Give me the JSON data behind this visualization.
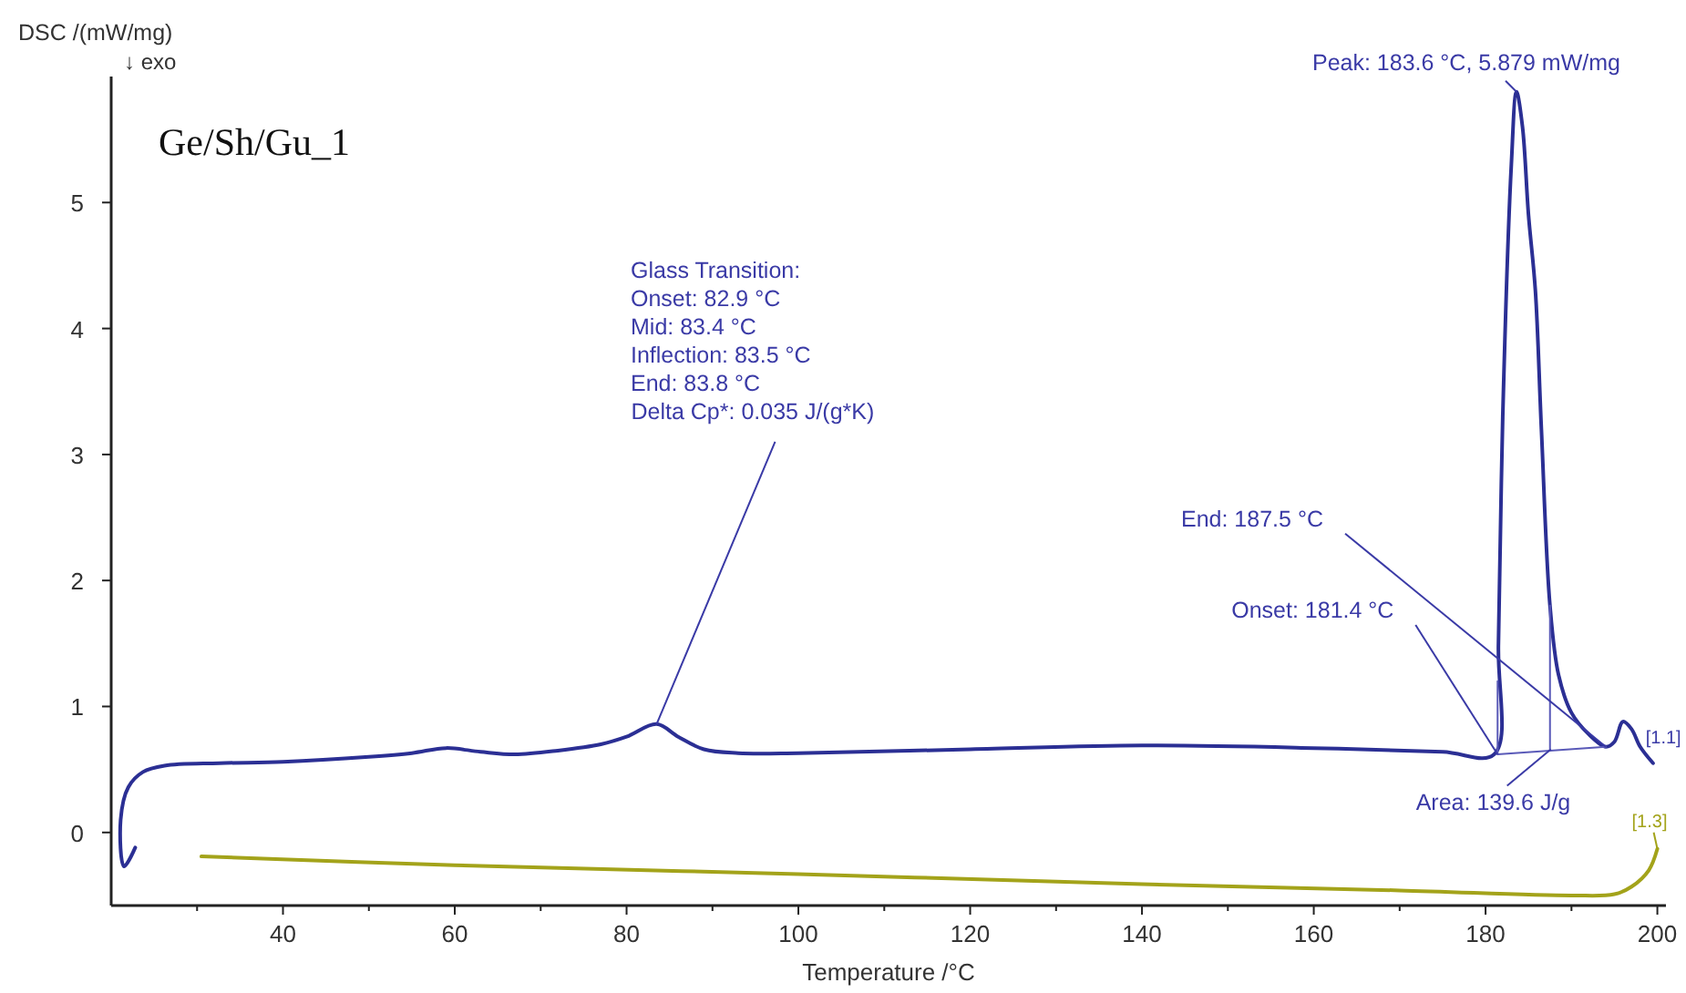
{
  "chart_data": {
    "type": "line",
    "title": "Ge/Sh/Gu_1",
    "xlabel": "Temperature /°C",
    "ylabel": "DSC /(mW/mg)",
    "xlim": [
      20,
      201
    ],
    "ylim": [
      -0.58,
      6.0
    ],
    "xticks": [
      {
        "value": 30,
        "label": null
      },
      40,
      {
        "value": 50,
        "label": null
      },
      60,
      {
        "value": 70,
        "label": null
      },
      80,
      {
        "value": 90,
        "label": null
      },
      100,
      {
        "value": 110,
        "label": null
      },
      120,
      {
        "value": 130,
        "label": null
      },
      140,
      {
        "value": 150,
        "label": null
      },
      160,
      {
        "value": 170,
        "label": null
      },
      180,
      {
        "value": 190,
        "label": null
      },
      200
    ],
    "yticks": [
      0,
      1,
      2,
      3,
      4,
      5
    ],
    "grid": false,
    "line_style": "solid",
    "series": [
      {
        "color": "#2b2f94",
        "x": [
          22.8,
          21.5,
          21.1,
          22.0,
          23.7,
          26.2,
          32.6,
          40,
          50,
          55,
          59,
          63,
          67,
          72,
          77,
          80,
          83.5,
          86,
          89,
          93,
          100,
          120,
          140,
          160,
          175,
          181,
          181.5,
          182,
          183,
          183.6,
          184.3,
          185,
          185.8,
          186.5,
          187.5,
          188.5,
          190,
          192,
          194,
          195,
          196,
          197,
          198,
          199.5
        ],
        "values": [
          -0.12,
          -0.27,
          0.1,
          0.36,
          0.48,
          0.53,
          0.55,
          0.56,
          0.6,
          0.63,
          0.67,
          0.64,
          0.62,
          0.65,
          0.7,
          0.76,
          0.86,
          0.76,
          0.66,
          0.63,
          0.63,
          0.66,
          0.69,
          0.67,
          0.64,
          0.62,
          1.5,
          3.3,
          5.3,
          5.879,
          5.6,
          4.9,
          4.3,
          3.2,
          1.8,
          1.25,
          0.95,
          0.78,
          0.68,
          0.72,
          0.88,
          0.82,
          0.68,
          0.55
        ]
      },
      {
        "color": "#a3a31a",
        "x": [
          30.5,
          60,
          100,
          140,
          170,
          190,
          195,
          197,
          199,
          200
        ],
        "values": [
          -0.19,
          -0.26,
          -0.33,
          -0.41,
          -0.46,
          -0.5,
          -0.49,
          -0.43,
          -0.3,
          -0.13
        ]
      },
      {
        "color": "#5a5ab8",
        "x": [
          181.4,
          194
        ],
        "values": [
          0.62,
          0.68
        ]
      },
      {
        "color": "#5a5ab8",
        "x": [
          181.4,
          181.4
        ],
        "values": [
          0.62,
          1.2
        ]
      },
      {
        "color": "#5a5ab8",
        "x": [
          187.5,
          187.5
        ],
        "values": [
          0.65,
          1.8
        ]
      }
    ],
    "annotations": [
      "↓ exo",
      "Glass Transition:",
      "Onset: 82.9 °C",
      "Mid: 83.4 °C",
      "Inflection: 83.5 °C",
      "End: 83.8 °C",
      {
        "text": "Delta Cp*: 0.035 J/(g*K)",
        "x": 83.5,
        "y": 0.86
      },
      {
        "text": "Peak: 183.6 °C, 5.879 mW/mg",
        "x": 183.6,
        "y": 5.879
      },
      {
        "text": "End: 187.5 °C",
        "x": 194,
        "y": 0.68
      },
      {
        "text": "Onset: 181.4 °C",
        "x": 181.4,
        "y": 0.62
      },
      {
        "text": "Area: 139.6 J/g",
        "x": 187.6,
        "y": 0.66
      },
      {
        "text": "[1.1]",
        "x": 198,
        "y": 0.75
      },
      {
        "text": "[1.3]",
        "x": 200,
        "y": -0.13
      }
    ]
  }
}
